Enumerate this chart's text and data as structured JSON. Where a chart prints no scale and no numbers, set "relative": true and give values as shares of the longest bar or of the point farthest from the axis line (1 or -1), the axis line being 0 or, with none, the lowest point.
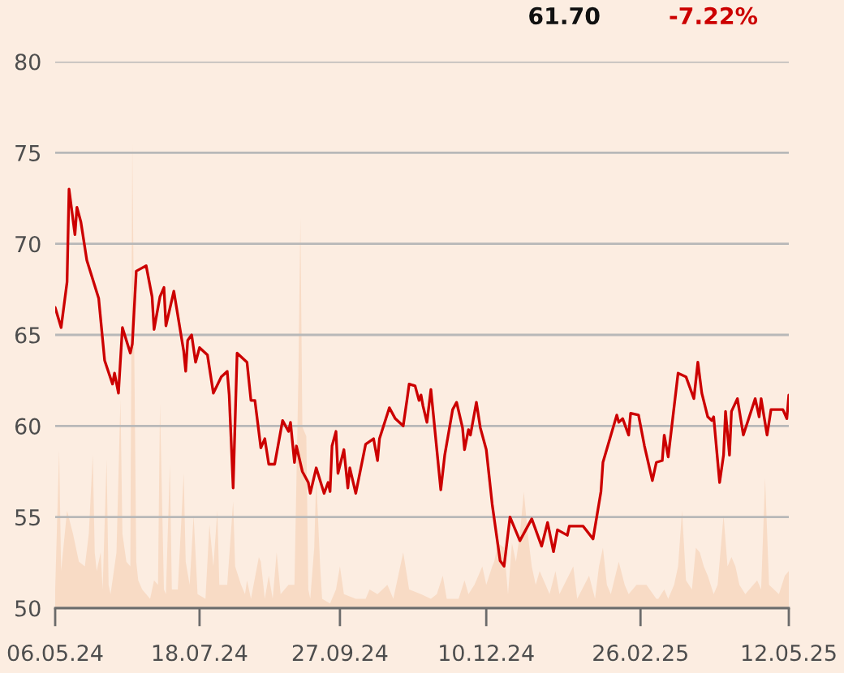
{
  "chart_data": [
    {
      "type": "line",
      "annotations": [
        "61.70",
        "-7.22%"
      ],
      "xlim": [
        "2024-05-06",
        "2025-05-12"
      ],
      "xticks": [
        {
          "value": "2024-05-06",
          "label": "06.05.24"
        },
        {
          "value": "2024-07-18",
          "label": "18.07.24"
        },
        {
          "value": "2024-09-27",
          "label": "27.09.24"
        },
        {
          "value": "2024-12-10",
          "label": "10.12.24"
        },
        {
          "value": "2025-02-26",
          "label": "26.02.25"
        },
        {
          "value": "2025-05-12",
          "label": "12.05.25"
        }
      ],
      "ylim": [
        50,
        80
      ],
      "yticks": [
        50,
        55,
        60,
        65,
        70,
        75,
        80
      ],
      "grid": "y",
      "color": "#cc0000",
      "x": [
        "2024-05-06",
        "2024-05-09",
        "2024-05-12",
        "2024-05-13",
        "2024-05-16",
        "2024-05-17",
        "2024-05-19",
        "2024-05-22",
        "2024-05-28",
        "2024-05-31",
        "2024-06-04",
        "2024-06-05",
        "2024-06-07",
        "2024-06-09",
        "2024-06-13",
        "2024-06-14",
        "2024-06-16",
        "2024-06-21",
        "2024-06-24",
        "2024-06-25",
        "2024-06-28",
        "2024-06-30",
        "2024-07-01",
        "2024-07-05",
        "2024-07-10",
        "2024-07-11",
        "2024-07-12",
        "2024-07-14",
        "2024-07-16",
        "2024-07-18",
        "2024-07-22",
        "2024-07-25",
        "2024-07-29",
        "2024-08-01",
        "2024-08-02",
        "2024-08-04",
        "2024-08-06",
        "2024-08-11",
        "2024-08-13",
        "2024-08-15",
        "2024-08-18",
        "2024-08-20",
        "2024-08-21",
        "2024-08-22",
        "2024-08-25",
        "2024-08-29",
        "2024-09-01",
        "2024-09-02",
        "2024-09-04",
        "2024-09-05",
        "2024-09-08",
        "2024-09-11",
        "2024-09-12",
        "2024-09-15",
        "2024-09-19",
        "2024-09-21",
        "2024-09-22",
        "2024-09-23",
        "2024-09-25",
        "2024-09-26",
        "2024-09-29",
        "2024-10-01",
        "2024-10-02",
        "2024-10-05",
        "2024-10-10",
        "2024-10-14",
        "2024-10-16",
        "2024-10-17",
        "2024-10-22",
        "2024-10-25",
        "2024-10-29",
        "2024-10-31",
        "2024-11-01",
        "2024-11-04",
        "2024-11-06",
        "2024-11-07",
        "2024-11-08",
        "2024-11-10",
        "2024-11-12",
        "2024-11-17",
        "2024-11-19",
        "2024-11-23",
        "2024-11-25",
        "2024-11-28",
        "2024-11-29",
        "2024-12-01",
        "2024-12-02",
        "2024-12-05",
        "2024-12-07",
        "2024-12-10",
        "2024-12-13",
        "2024-12-17",
        "2024-12-19",
        "2024-12-22",
        "2024-12-27",
        "2025-01-02",
        "2025-01-07",
        "2025-01-10",
        "2025-01-13",
        "2025-01-15",
        "2025-01-20",
        "2025-01-21",
        "2025-01-28",
        "2025-02-02",
        "2025-02-06",
        "2025-02-07",
        "2025-02-14",
        "2025-02-15",
        "2025-02-17",
        "2025-02-20",
        "2025-02-21",
        "2025-02-25",
        "2025-02-28",
        "2025-03-04",
        "2025-03-06",
        "2025-03-09",
        "2025-03-10",
        "2025-03-12",
        "2025-03-17",
        "2025-03-21",
        "2025-03-25",
        "2025-03-27",
        "2025-03-29",
        "2025-04-01",
        "2025-04-03",
        "2025-04-04",
        "2025-04-07",
        "2025-04-09",
        "2025-04-10",
        "2025-04-12",
        "2025-04-13",
        "2025-04-16",
        "2025-04-19",
        "2025-04-25",
        "2025-04-27",
        "2025-04-28",
        "2025-05-01",
        "2025-05-03",
        "2025-05-07",
        "2025-05-09",
        "2025-05-11",
        "2025-05-12"
      ],
      "values": [
        66.5,
        65.4,
        67.9,
        73.0,
        70.5,
        72.0,
        71.2,
        69.1,
        67.0,
        63.6,
        62.3,
        62.9,
        61.8,
        65.4,
        64.0,
        64.5,
        68.5,
        68.8,
        67.1,
        65.3,
        67.1,
        67.6,
        65.5,
        67.4,
        64.1,
        63.0,
        64.7,
        65.0,
        63.5,
        64.3,
        63.9,
        61.8,
        62.7,
        63.0,
        61.7,
        56.6,
        64.0,
        63.5,
        61.4,
        61.4,
        58.8,
        59.3,
        58.6,
        57.9,
        57.9,
        60.3,
        59.7,
        60.2,
        58.0,
        58.9,
        57.5,
        56.9,
        56.3,
        57.7,
        56.3,
        56.9,
        56.4,
        58.9,
        59.7,
        57.4,
        58.7,
        56.6,
        57.7,
        56.3,
        59.0,
        59.3,
        58.1,
        59.3,
        61.0,
        60.4,
        60.0,
        61.5,
        62.3,
        62.2,
        61.4,
        61.7,
        61.1,
        60.2,
        62.0,
        56.5,
        58.4,
        60.9,
        61.3,
        59.9,
        58.7,
        59.8,
        59.5,
        61.3,
        59.9,
        58.7,
        55.7,
        52.6,
        52.3,
        55.0,
        53.7,
        54.9,
        53.4,
        54.7,
        53.1,
        54.3,
        54.0,
        54.5,
        54.5,
        53.8,
        56.4,
        58.0,
        60.6,
        60.2,
        60.4,
        59.5,
        60.7,
        60.6,
        58.9,
        57.0,
        58.0,
        58.1,
        59.5,
        58.3,
        62.9,
        62.7,
        61.5,
        63.5,
        61.8,
        60.5,
        60.3,
        60.5,
        56.9,
        58.4,
        60.8,
        58.4,
        60.8,
        61.5,
        59.5,
        61.5,
        60.5,
        61.5,
        59.5,
        60.9,
        60.9,
        60.9,
        60.4,
        61.7
      ]
    },
    {
      "type": "area",
      "relative": true,
      "color": "#f8dbc5",
      "xlim": [
        "2024-05-06",
        "2025-05-12"
      ],
      "x": [
        "2024-05-06",
        "2024-05-08",
        "2024-05-09",
        "2024-05-12",
        "2024-05-15",
        "2024-05-18",
        "2024-05-21",
        "2024-05-23",
        "2024-05-25",
        "2024-05-26",
        "2024-05-27",
        "2024-05-29",
        "2024-05-30",
        "2024-06-01",
        "2024-06-02",
        "2024-06-03",
        "2024-06-06",
        "2024-06-08",
        "2024-06-09",
        "2024-06-11",
        "2024-06-13",
        "2024-06-14",
        "2024-06-16",
        "2024-06-17",
        "2024-06-19",
        "2024-06-23",
        "2024-06-25",
        "2024-06-27",
        "2024-06-28",
        "2024-06-30",
        "2024-07-01",
        "2024-07-03",
        "2024-07-04",
        "2024-07-07",
        "2024-07-10",
        "2024-07-11",
        "2024-07-13",
        "2024-07-15",
        "2024-07-17",
        "2024-07-21",
        "2024-07-23",
        "2024-07-25",
        "2024-07-27",
        "2024-07-28",
        "2024-08-01",
        "2024-08-04",
        "2024-08-05",
        "2024-08-08",
        "2024-08-10",
        "2024-08-11",
        "2024-08-13",
        "2024-08-17",
        "2024-08-18",
        "2024-08-20",
        "2024-08-22",
        "2024-08-24",
        "2024-08-26",
        "2024-08-28",
        "2024-09-01",
        "2024-09-04",
        "2024-09-06",
        "2024-09-07",
        "2024-09-08",
        "2024-09-10",
        "2024-09-11",
        "2024-09-12",
        "2024-09-14",
        "2024-09-15",
        "2024-09-17",
        "2024-09-18",
        "2024-09-22",
        "2024-09-25",
        "2024-09-27",
        "2024-09-29",
        "2024-10-05",
        "2024-10-10",
        "2024-10-12",
        "2024-10-16",
        "2024-10-21",
        "2024-10-24",
        "2024-10-29",
        "2024-11-01",
        "2024-11-07",
        "2024-11-12",
        "2024-11-15",
        "2024-11-18",
        "2024-11-20",
        "2024-11-26",
        "2024-11-29",
        "2024-12-01",
        "2024-12-04",
        "2024-12-06",
        "2024-12-08",
        "2024-12-10",
        "2024-12-13",
        "2024-12-14",
        "2024-12-16",
        "2024-12-19",
        "2024-12-21",
        "2024-12-23",
        "2024-12-25",
        "2024-12-27",
        "2024-12-29",
        "2024-12-31",
        "2025-01-02",
        "2025-01-04",
        "2025-01-06",
        "2025-01-09",
        "2025-01-11",
        "2025-01-14",
        "2025-01-16",
        "2025-01-23",
        "2025-01-25",
        "2025-01-31",
        "2025-02-03",
        "2025-02-05",
        "2025-02-07",
        "2025-02-09",
        "2025-02-11",
        "2025-02-15",
        "2025-02-18",
        "2025-02-20",
        "2025-02-24",
        "2025-03-01",
        "2025-03-06",
        "2025-03-07",
        "2025-03-10",
        "2025-03-12",
        "2025-03-15",
        "2025-03-17",
        "2025-03-19",
        "2025-03-21",
        "2025-03-24",
        "2025-03-26",
        "2025-03-28",
        "2025-03-30",
        "2025-04-01",
        "2025-04-04",
        "2025-04-06",
        "2025-04-09",
        "2025-04-11",
        "2025-04-13",
        "2025-04-15",
        "2025-04-17",
        "2025-04-20",
        "2025-04-26",
        "2025-04-28",
        "2025-04-30",
        "2025-05-02",
        "2025-05-07",
        "2025-05-10",
        "2025-05-12"
      ],
      "values": [
        0.04,
        0.34,
        0.08,
        0.21,
        0.16,
        0.1,
        0.09,
        0.16,
        0.33,
        0.12,
        0.08,
        0.12,
        0.04,
        0.32,
        0.05,
        0.03,
        0.12,
        0.45,
        0.16,
        0.1,
        0.09,
        1.0,
        0.1,
        0.06,
        0.04,
        0.02,
        0.06,
        0.05,
        0.44,
        0.04,
        0.03,
        0.31,
        0.04,
        0.04,
        0.29,
        0.1,
        0.05,
        0.2,
        0.03,
        0.02,
        0.18,
        0.09,
        0.21,
        0.05,
        0.05,
        0.23,
        0.09,
        0.05,
        0.03,
        0.06,
        0.02,
        0.11,
        0.1,
        0.02,
        0.07,
        0.02,
        0.12,
        0.03,
        0.05,
        0.05,
        0.5,
        0.84,
        0.39,
        0.37,
        0.04,
        0.02,
        0.13,
        0.28,
        0.09,
        0.02,
        0.01,
        0.04,
        0.09,
        0.03,
        0.02,
        0.02,
        0.04,
        0.03,
        0.05,
        0.02,
        0.12,
        0.04,
        0.03,
        0.02,
        0.03,
        0.07,
        0.02,
        0.02,
        0.06,
        0.03,
        0.05,
        0.07,
        0.09,
        0.05,
        0.09,
        0.1,
        0.14,
        0.13,
        0.03,
        0.14,
        0.1,
        0.16,
        0.25,
        0.16,
        0.09,
        0.05,
        0.08,
        0.05,
        0.03,
        0.08,
        0.03,
        0.09,
        0.02,
        0.07,
        0.02,
        0.09,
        0.13,
        0.05,
        0.03,
        0.1,
        0.05,
        0.03,
        0.05,
        0.05,
        0.02,
        0.02,
        0.04,
        0.02,
        0.05,
        0.09,
        0.21,
        0.06,
        0.04,
        0.13,
        0.12,
        0.09,
        0.07,
        0.03,
        0.05,
        0.2,
        0.09,
        0.11,
        0.09,
        0.05,
        0.03,
        0.06,
        0.04,
        0.28,
        0.05,
        0.03,
        0.07,
        0.08
      ]
    }
  ]
}
